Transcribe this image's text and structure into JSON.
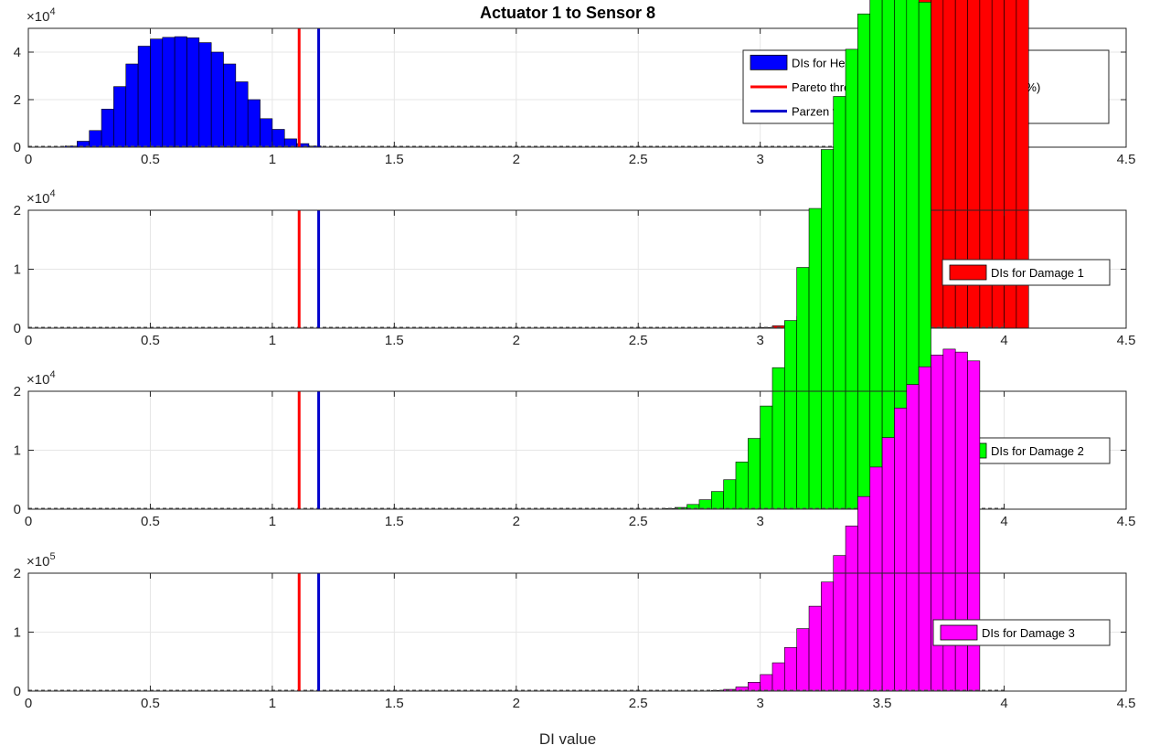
{
  "chart_data": {
    "type": "bar",
    "title": "Actuator 1 to Sensor 8",
    "xlabel": "DI value",
    "xlim": [
      0,
      4.5
    ],
    "x_ticks": [
      "0",
      "0.5",
      "1",
      "1.5",
      "2",
      "2.5",
      "3",
      "3.5",
      "4",
      "4.5"
    ],
    "grid": true,
    "bin_width": 0.05,
    "thresholds": [
      {
        "name": "Pareto threshold",
        "x": 1.11,
        "color": "#ff0000"
      },
      {
        "name": "Parzen threshold",
        "x": 1.19,
        "color": "#0000cc"
      }
    ],
    "subplots": [
      {
        "series_name": "DIs for Healthy",
        "color": "#0000ff",
        "scale_label": "×10",
        "scale_exp": "4",
        "ylim": [
          0,
          5
        ],
        "y_ticks": [
          "0",
          "2",
          "4"
        ],
        "legend_position": "top-right",
        "legend_items": [
          {
            "type": "bar",
            "label": "DIs for Healthy",
            "color": "#0000ff"
          },
          {
            "type": "line",
            "label": "Pareto threshold (PFA=10",
            "exp": "-9",
            "label_rest": " , u=5 %, N=100 %)",
            "color": "#ff0000"
          },
          {
            "type": "line",
            "label": "Parzen threshold (PFA=10",
            "exp": "-9",
            "label_rest": " , N=100 %)",
            "color": "#0000cc"
          }
        ],
        "bins": [
          [
            0.125,
            0.01
          ],
          [
            0.175,
            0.05
          ],
          [
            0.225,
            0.25
          ],
          [
            0.275,
            0.7
          ],
          [
            0.325,
            1.6
          ],
          [
            0.375,
            2.55
          ],
          [
            0.425,
            3.5
          ],
          [
            0.475,
            4.25
          ],
          [
            0.525,
            4.55
          ],
          [
            0.575,
            4.62
          ],
          [
            0.625,
            4.65
          ],
          [
            0.675,
            4.6
          ],
          [
            0.725,
            4.4
          ],
          [
            0.775,
            4.0
          ],
          [
            0.825,
            3.5
          ],
          [
            0.875,
            2.75
          ],
          [
            0.925,
            2.0
          ],
          [
            0.975,
            1.2
          ],
          [
            1.025,
            0.75
          ],
          [
            1.075,
            0.35
          ],
          [
            1.125,
            0.15
          ],
          [
            1.175,
            0.05
          ]
        ]
      },
      {
        "series_name": "DIs for Damage 1",
        "color": "#ff0000",
        "scale_label": "×10",
        "scale_exp": "4",
        "ylim": [
          0,
          2
        ],
        "y_ticks": [
          "0",
          "1",
          "2"
        ],
        "legend_position": "right",
        "legend_items": [
          {
            "type": "bar",
            "label": "DIs for Damage 1",
            "color": "#ff0000"
          }
        ],
        "bins": [
          [
            3.025,
            0.01
          ],
          [
            3.075,
            0.04
          ],
          [
            3.125,
            0.1
          ],
          [
            3.175,
            0.2
          ],
          [
            3.225,
            0.35
          ],
          [
            3.275,
            0.6
          ],
          [
            3.325,
            1.0
          ],
          [
            3.375,
            1.5
          ],
          [
            3.425,
            2.1
          ],
          [
            3.475,
            2.8
          ],
          [
            3.525,
            3.6
          ],
          [
            3.575,
            4.5
          ],
          [
            3.625,
            5.5
          ],
          [
            3.675,
            6.5
          ],
          [
            3.725,
            7.6
          ],
          [
            3.775,
            8.6
          ],
          [
            3.825,
            9.3
          ],
          [
            3.875,
            9.7
          ],
          [
            3.925,
            9.7
          ],
          [
            3.975,
            9.4
          ],
          [
            4.025,
            8.8
          ],
          [
            4.075,
            7.9
          ]
        ]
      },
      {
        "series_name": "DIs for Damage 2",
        "color": "#00ff00",
        "scale_label": "×10",
        "scale_exp": "4",
        "ylim": [
          0,
          2
        ],
        "y_ticks": [
          "0",
          "1",
          "2"
        ],
        "legend_position": "right",
        "legend_items": [
          {
            "type": "bar",
            "label": "DIs for Damage 2",
            "color": "#00ff00"
          }
        ],
        "bins": [
          [
            2.625,
            0.01
          ],
          [
            2.675,
            0.03
          ],
          [
            2.725,
            0.08
          ],
          [
            2.775,
            0.16
          ],
          [
            2.825,
            0.3
          ],
          [
            2.875,
            0.5
          ],
          [
            2.925,
            0.8
          ],
          [
            2.975,
            1.2
          ],
          [
            3.025,
            1.75
          ],
          [
            3.075,
            2.4
          ],
          [
            3.125,
            3.2
          ],
          [
            3.175,
            4.1
          ],
          [
            3.225,
            5.1
          ],
          [
            3.275,
            6.1
          ],
          [
            3.325,
            7.0
          ],
          [
            3.375,
            7.8
          ],
          [
            3.425,
            8.4
          ],
          [
            3.475,
            8.9
          ],
          [
            3.525,
            9.1
          ],
          [
            3.575,
            9.2
          ],
          [
            3.625,
            9.0
          ],
          [
            3.675,
            8.6
          ]
        ]
      },
      {
        "series_name": "DIs for Damage 3",
        "color": "#ff00ff",
        "scale_label": "×10",
        "scale_exp": "5",
        "ylim": [
          0,
          2
        ],
        "y_ticks": [
          "0",
          "1",
          "2"
        ],
        "legend_position": "right",
        "legend_items": [
          {
            "type": "bar",
            "label": "DIs for Damage 3",
            "color": "#ff00ff"
          }
        ],
        "bins": [
          [
            2.825,
            0.01
          ],
          [
            2.875,
            0.03
          ],
          [
            2.925,
            0.07
          ],
          [
            2.975,
            0.15
          ],
          [
            3.025,
            0.28
          ],
          [
            3.075,
            0.48
          ],
          [
            3.125,
            0.74
          ],
          [
            3.175,
            1.06
          ],
          [
            3.225,
            1.44
          ],
          [
            3.275,
            1.85
          ],
          [
            3.325,
            2.3
          ],
          [
            3.375,
            2.8
          ],
          [
            3.425,
            3.3
          ],
          [
            3.475,
            3.8
          ],
          [
            3.525,
            4.3
          ],
          [
            3.575,
            4.8
          ],
          [
            3.625,
            5.2
          ],
          [
            3.675,
            5.5
          ],
          [
            3.725,
            5.7
          ],
          [
            3.775,
            5.8
          ],
          [
            3.825,
            5.75
          ],
          [
            3.875,
            5.6
          ]
        ]
      }
    ]
  }
}
